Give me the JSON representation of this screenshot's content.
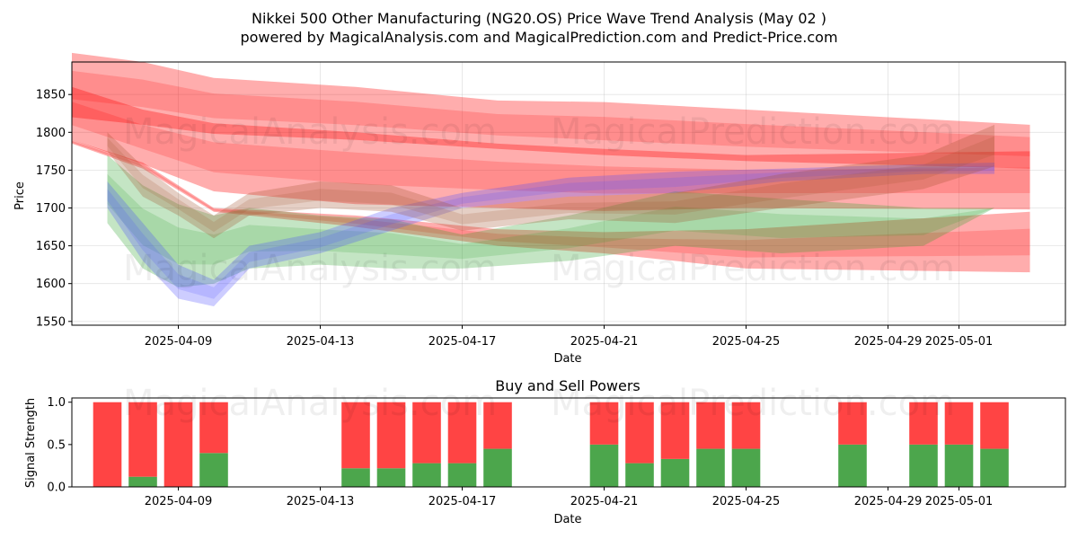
{
  "title_line1": "Nikkei 500 Other Manufacturing (NG20.OS) Price Wave Trend Analysis (May 02 )",
  "title_line2": "powered by MagicalAnalysis.com and MagicalPrediction.com and Predict-Price.com",
  "watermark_1": "MagicalAnalysis.com",
  "watermark_2": "MagicalPrediction.com",
  "chart_data": [
    {
      "type": "area",
      "title": "",
      "xlabel": "Date",
      "ylabel": "Price",
      "x_range": [
        "2025-04-06",
        "2025-05-04"
      ],
      "ylim": [
        1545,
        1893
      ],
      "y_ticks": [
        1550,
        1600,
        1650,
        1700,
        1750,
        1800,
        1850
      ],
      "x_ticks": [
        "2025-04-09",
        "2025-04-13",
        "2025-04-17",
        "2025-04-21",
        "2025-04-25",
        "2025-04-29",
        "2025-05-01"
      ],
      "grid": true,
      "series": [
        {
          "name": "red-wave-high",
          "color": "#ff0000",
          "x": [
            "2025-04-06",
            "2025-04-08",
            "2025-04-10",
            "2025-04-14",
            "2025-04-18",
            "2025-04-21",
            "2025-04-25",
            "2025-05-03"
          ],
          "upper": [
            1905,
            1893,
            1872,
            1860,
            1842,
            1840,
            1830,
            1810
          ],
          "lower": [
            1820,
            1810,
            1798,
            1790,
            1778,
            1770,
            1762,
            1752
          ]
        },
        {
          "name": "red-wave-mid",
          "color": "#ff0000",
          "x": [
            "2025-04-06",
            "2025-04-08",
            "2025-04-10",
            "2025-04-14",
            "2025-04-18",
            "2025-04-21",
            "2025-04-25",
            "2025-05-03"
          ],
          "upper": [
            1860,
            1830,
            1812,
            1800,
            1785,
            1778,
            1770,
            1775
          ],
          "lower": [
            1790,
            1758,
            1722,
            1705,
            1700,
            1696,
            1700,
            1698
          ]
        },
        {
          "name": "red-wave-low",
          "color": "#ff0000",
          "x": [
            "2025-04-06",
            "2025-04-08",
            "2025-04-10",
            "2025-04-14",
            "2025-04-18",
            "2025-04-21",
            "2025-04-25",
            "2025-05-03"
          ],
          "upper": [
            1790,
            1760,
            1700,
            1690,
            1672,
            1668,
            1672,
            1695
          ],
          "lower": [
            1785,
            1752,
            1695,
            1675,
            1650,
            1640,
            1620,
            1615
          ]
        },
        {
          "name": "green-wave",
          "color": "#2ca02c",
          "x": [
            "2025-04-07",
            "2025-04-08",
            "2025-04-09",
            "2025-04-10",
            "2025-04-11",
            "2025-04-13",
            "2025-04-15",
            "2025-04-17",
            "2025-04-20",
            "2025-04-23",
            "2025-04-26",
            "2025-04-30",
            "2025-05-02"
          ],
          "upper": [
            1770,
            1730,
            1705,
            1690,
            1700,
            1690,
            1685,
            1665,
            1690,
            1722,
            1712,
            1700,
            1700
          ],
          "lower": [
            1680,
            1620,
            1595,
            1600,
            1620,
            1625,
            1620,
            1620,
            1630,
            1650,
            1640,
            1650,
            1700
          ]
        },
        {
          "name": "blue-wave",
          "color": "#4b4bff",
          "x": [
            "2025-04-07",
            "2025-04-08",
            "2025-04-09",
            "2025-04-10",
            "2025-04-11",
            "2025-04-13",
            "2025-04-15",
            "2025-04-17",
            "2025-04-20",
            "2025-04-23",
            "2025-04-26",
            "2025-04-30",
            "2025-05-02"
          ],
          "upper": [
            1735,
            1680,
            1625,
            1605,
            1650,
            1668,
            1700,
            1720,
            1740,
            1748,
            1752,
            1758,
            1760
          ],
          "lower": [
            1700,
            1630,
            1580,
            1570,
            1620,
            1640,
            1670,
            1700,
            1715,
            1720,
            1735,
            1745,
            1745
          ]
        },
        {
          "name": "brown-wave",
          "color": "#a0522d",
          "x": [
            "2025-04-07",
            "2025-04-08",
            "2025-04-09",
            "2025-04-10",
            "2025-04-11",
            "2025-04-13",
            "2025-04-15",
            "2025-04-17",
            "2025-04-20",
            "2025-04-23",
            "2025-04-26",
            "2025-04-30",
            "2025-05-02"
          ],
          "upper": [
            1800,
            1755,
            1720,
            1690,
            1720,
            1735,
            1730,
            1700,
            1715,
            1720,
            1745,
            1770,
            1810
          ],
          "lower": [
            1775,
            1715,
            1690,
            1660,
            1690,
            1700,
            1695,
            1670,
            1685,
            1680,
            1700,
            1725,
            1755
          ]
        }
      ]
    },
    {
      "type": "bar",
      "title": "Buy and Sell Powers",
      "xlabel": "Date",
      "ylabel": "Signal Strength",
      "ylim": [
        0,
        1.05
      ],
      "y_ticks": [
        "0.0",
        "0.5",
        "1.0"
      ],
      "x_ticks": [
        "2025-04-09",
        "2025-04-13",
        "2025-04-17",
        "2025-04-21",
        "2025-04-25",
        "2025-04-29",
        "2025-05-01"
      ],
      "grid": false,
      "categories": [
        "2025-04-07",
        "2025-04-08",
        "2025-04-09",
        "2025-04-10",
        "2025-04-14",
        "2025-04-15",
        "2025-04-16",
        "2025-04-17",
        "2025-04-18",
        "2025-04-21",
        "2025-04-22",
        "2025-04-23",
        "2025-04-24",
        "2025-04-25",
        "2025-04-28",
        "2025-04-30",
        "2025-05-01",
        "2025-05-02"
      ],
      "series": [
        {
          "name": "Buy",
          "color": "#4ca64c",
          "values": [
            0.0,
            0.12,
            0.0,
            0.4,
            0.22,
            0.22,
            0.28,
            0.28,
            0.45,
            0.5,
            0.28,
            0.33,
            0.45,
            0.45,
            0.5,
            0.5,
            0.5,
            0.45
          ]
        },
        {
          "name": "Sell",
          "color": "#ff4444",
          "values": [
            1.0,
            0.88,
            1.0,
            0.6,
            0.78,
            0.78,
            0.72,
            0.72,
            0.55,
            0.5,
            0.72,
            0.67,
            0.55,
            0.55,
            0.5,
            0.5,
            0.5,
            0.55
          ]
        }
      ]
    }
  ]
}
